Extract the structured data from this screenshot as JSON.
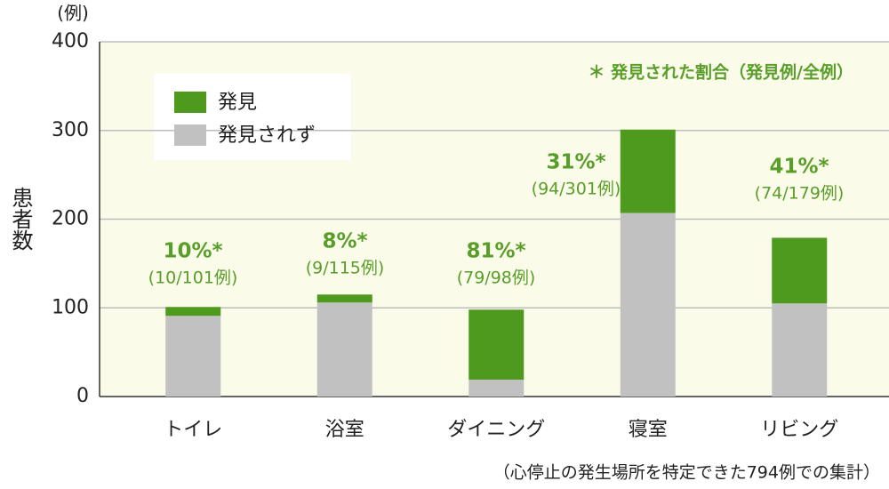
{
  "chart_data": {
    "type": "stacked_bar",
    "y_unit": "(例)",
    "y_label": "患者数",
    "note": "＊ 発見された割合（発見例/全例）",
    "footnote": "（心停止の発生場所を特定できた794例での集計）",
    "categories": [
      "トイレ",
      "浴室",
      "ダイニング",
      "寝室",
      "リビング"
    ],
    "series": [
      {
        "name": "発見",
        "color": "#4e9a1e",
        "values": [
          10,
          9,
          79,
          94,
          74
        ]
      },
      {
        "name": "発見されず",
        "color": "#c1c1c1",
        "values": [
          91,
          106,
          19,
          207,
          105
        ]
      }
    ],
    "annotations": [
      [
        "10%*",
        "(10/101例)"
      ],
      [
        "8%*",
        "(9/115例)"
      ],
      [
        "81%*",
        "(79/98例)"
      ],
      [
        "31%*",
        "(94/301例)"
      ],
      [
        "41%*",
        "(74/179例)"
      ]
    ],
    "ylim": [
      0,
      400
    ],
    "yticks": [
      0,
      100,
      200,
      300,
      400
    ],
    "grid": true,
    "legend": "upper left"
  }
}
